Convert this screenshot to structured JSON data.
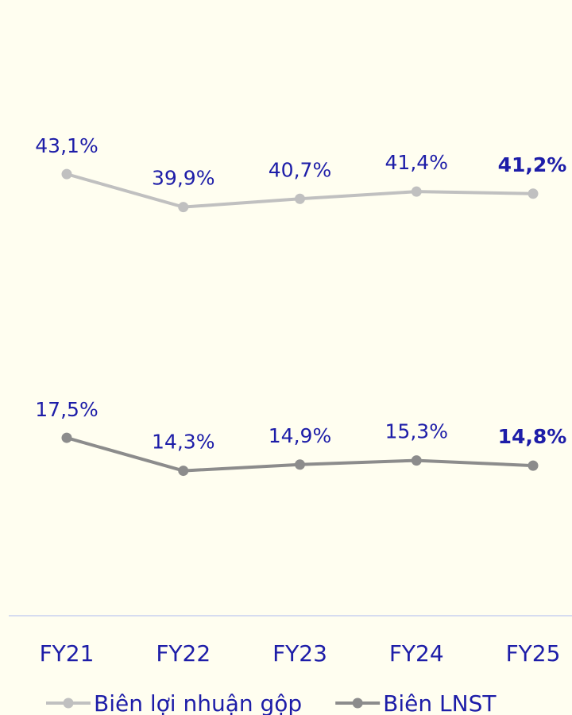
{
  "chart_data": {
    "type": "line",
    "categories": [
      "FY21",
      "FY22",
      "FY23",
      "FY24",
      "FY25"
    ],
    "series": [
      {
        "name": "Biên lợi nhuận gộp",
        "color": "#c0c0c0",
        "values": [
          43.1,
          39.9,
          40.7,
          41.4,
          41.2
        ],
        "value_labels": [
          "43,1%",
          "39,9%",
          "40,7%",
          "41,4%",
          "41,2%"
        ]
      },
      {
        "name": "Biên LNST",
        "color": "#8c8c8c",
        "values": [
          17.5,
          14.3,
          14.9,
          15.3,
          14.8
        ],
        "value_labels": [
          "17,5%",
          "14,3%",
          "14,9%",
          "15,3%",
          "14,8%"
        ]
      }
    ],
    "ylim": [
      0,
      60
    ],
    "legend": "bottom"
  }
}
